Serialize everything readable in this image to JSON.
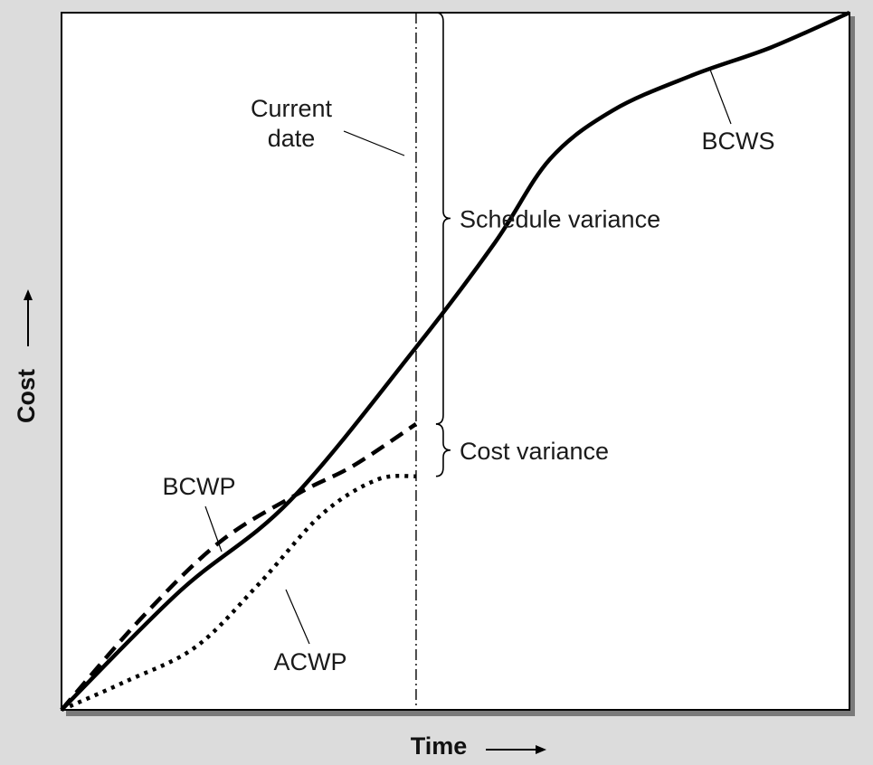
{
  "chart_data": {
    "type": "line",
    "xlabel": "Time",
    "ylabel": "Cost",
    "xlim": [
      0,
      100
    ],
    "ylim": [
      0,
      100
    ],
    "series": [
      {
        "name": "BCWS",
        "style": "solid",
        "x": [
          0,
          15,
          29,
          45,
          55,
          62,
          70,
          80,
          90,
          100
        ],
        "y": [
          0,
          17,
          30,
          52,
          67,
          79,
          86,
          91,
          95,
          100
        ]
      },
      {
        "name": "BCWP",
        "style": "dashed",
        "x": [
          0,
          10,
          20,
          30,
          37,
          45
        ],
        "y": [
          0,
          13,
          24,
          31,
          35,
          41
        ]
      },
      {
        "name": "ACWP",
        "style": "dotted",
        "x": [
          0,
          8,
          17,
          25,
          33,
          40,
          45
        ],
        "y": [
          0,
          4,
          9,
          18,
          28,
          33,
          33.5
        ]
      }
    ],
    "current_date_x": 45,
    "annotations": [
      {
        "id": "current",
        "lines": [
          "Current",
          "date"
        ]
      },
      {
        "id": "bcws",
        "lines": [
          "BCWS"
        ]
      },
      {
        "id": "bcwp",
        "lines": [
          "BCWP"
        ]
      },
      {
        "id": "acwp",
        "lines": [
          "ACWP"
        ]
      },
      {
        "id": "sv",
        "lines": [
          "Schedule variance"
        ]
      },
      {
        "id": "cv",
        "lines": [
          "Cost variance"
        ]
      }
    ],
    "grid": false,
    "legend": "none"
  }
}
